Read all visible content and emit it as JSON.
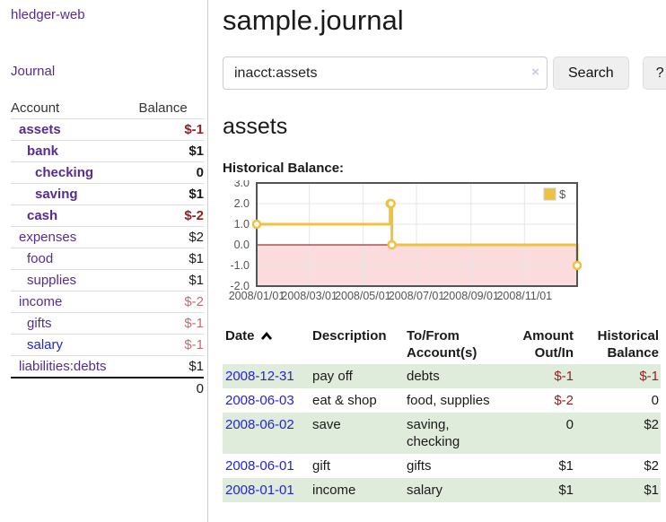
{
  "colors": {
    "link_purple": "#552d90",
    "link_blue": "#2525cb",
    "negative_strong": "#941f24",
    "negative_soft": "#bd6e72",
    "row_green": "#dfecdc",
    "series_gold": "#edc240",
    "zero_line": "#8b0000",
    "negative_region": "#fbdbdb",
    "chart_frame": "#545454",
    "grid": "#e6e6e6",
    "axis_text": "#545454"
  },
  "sidebar": {
    "app_title": "hledger-web",
    "nav": {
      "journal_label": "Journal"
    },
    "accounts_table": {
      "account_header": "Account",
      "balance_header": "Balance",
      "rows": [
        {
          "name": "assets",
          "balance": "$-1",
          "depth": 1,
          "emphasis": true,
          "balance_tone": "negative-strong",
          "link_tone": "visited"
        },
        {
          "name": "bank",
          "balance": "$1",
          "depth": 2,
          "emphasis": true,
          "balance_tone": "normal",
          "link_tone": "visited"
        },
        {
          "name": "checking",
          "balance": "0",
          "depth": 3,
          "emphasis": true,
          "balance_tone": "normal",
          "link_tone": "visited"
        },
        {
          "name": "saving",
          "balance": "$1",
          "depth": 3,
          "emphasis": true,
          "balance_tone": "normal",
          "link_tone": "visited"
        },
        {
          "name": "cash",
          "balance": "$-2",
          "depth": 2,
          "emphasis": true,
          "balance_tone": "negative-strong",
          "link_tone": "visited"
        },
        {
          "name": "expenses",
          "balance": "$2",
          "depth": 1,
          "emphasis": false,
          "balance_tone": "normal",
          "link_tone": "visited"
        },
        {
          "name": "food",
          "balance": "$1",
          "depth": 2,
          "emphasis": false,
          "balance_tone": "normal",
          "link_tone": "visited"
        },
        {
          "name": "supplies",
          "balance": "$1",
          "depth": 2,
          "emphasis": false,
          "balance_tone": "normal",
          "link_tone": "visited"
        },
        {
          "name": "income",
          "balance": "$-2",
          "depth": 1,
          "emphasis": false,
          "balance_tone": "negative-soft",
          "link_tone": "visited"
        },
        {
          "name": "gifts",
          "balance": "$-1",
          "depth": 2,
          "emphasis": false,
          "balance_tone": "negative-soft",
          "link_tone": "visited"
        },
        {
          "name": "salary",
          "balance": "$-1",
          "depth": 2,
          "emphasis": false,
          "balance_tone": "negative-soft",
          "link_tone": "unvisited"
        },
        {
          "name": "liabilities:debts",
          "balance": "$1",
          "depth": 1,
          "emphasis": false,
          "balance_tone": "normal",
          "link_tone": "visited"
        }
      ],
      "total": "0"
    }
  },
  "main": {
    "title": "sample.journal",
    "search": {
      "value": "inacct:assets",
      "clear_icon": "×",
      "button_label": "Search",
      "help_label": "?"
    },
    "account_heading": "assets",
    "chart_label": "Historical Balance:",
    "register": {
      "headers": [
        "Date",
        "Description",
        "To/From Account(s)",
        "Amount Out/In",
        "Historical Balance"
      ],
      "sort": "date-ascending",
      "rows": [
        {
          "date": "2008-12-31",
          "description": "pay off",
          "accounts": "debts",
          "amount": "$-1",
          "balance": "$-1",
          "amount_negative": true,
          "balance_negative": true
        },
        {
          "date": "2008-06-03",
          "description": "eat & shop",
          "accounts": "food, supplies",
          "amount": "$-2",
          "balance": "0",
          "amount_negative": true,
          "balance_negative": false
        },
        {
          "date": "2008-06-02",
          "description": "save",
          "accounts": "saving, checking",
          "amount": "0",
          "balance": "$2",
          "amount_negative": false,
          "balance_negative": false
        },
        {
          "date": "2008-06-01",
          "description": "gift",
          "accounts": "gifts",
          "amount": "$1",
          "balance": "$2",
          "amount_negative": false,
          "balance_negative": false
        },
        {
          "date": "2008-01-01",
          "description": "income",
          "accounts": "salary",
          "amount": "$1",
          "balance": "$1",
          "amount_negative": false,
          "balance_negative": false
        }
      ]
    }
  },
  "chart_data": {
    "type": "line",
    "step": true,
    "title": "Historical Balance",
    "xlim": [
      "2008-01-01",
      "2008-12-31"
    ],
    "ylim": [
      -2,
      3
    ],
    "y_ticks": [
      "3.0",
      "2.0",
      "1.0",
      "0.0",
      "-1.0",
      "-2.0"
    ],
    "x_ticks": [
      {
        "date": "2008-01-01",
        "label": "2008/01/01"
      },
      {
        "date": "2008-03-01",
        "label": "2008/03/01"
      },
      {
        "date": "2008-05-01",
        "label": "2008/05/01"
      },
      {
        "date": "2008-07-01",
        "label": "2008/07/01"
      },
      {
        "date": "2008-09-01",
        "label": "2008/09/01"
      },
      {
        "date": "2008-11-01",
        "label": "2008/11/01"
      }
    ],
    "grid": true,
    "legend": {
      "label": "$",
      "position": "top-right"
    },
    "series": [
      {
        "name": "$",
        "points": [
          {
            "x": "2008-01-01",
            "y": 1
          },
          {
            "x": "2008-06-01",
            "y": 2
          },
          {
            "x": "2008-06-02",
            "y": 2
          },
          {
            "x": "2008-06-03",
            "y": 0
          },
          {
            "x": "2008-12-31",
            "y": -1
          }
        ]
      }
    ]
  }
}
